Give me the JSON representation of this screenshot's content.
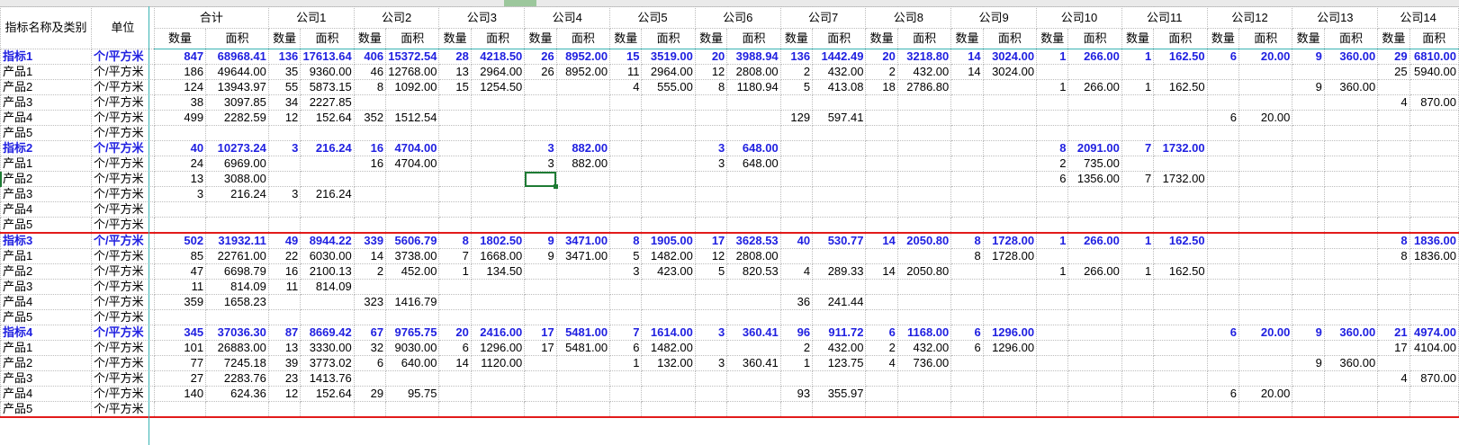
{
  "header": {
    "corner_label": "指标名称及类别",
    "unit_label": "单位",
    "groups": [
      "合计",
      "公司1",
      "公司2",
      "公司3",
      "公司4",
      "公司5",
      "公司6",
      "公司7",
      "公司8",
      "公司9",
      "公司10",
      "公司11",
      "公司12",
      "公司13",
      "公司14"
    ],
    "qty_label": "数量",
    "area_label": "面积"
  },
  "selection": {
    "row": 8,
    "col": "公司4 数量"
  },
  "rows": [
    {
      "kind": "sum",
      "name": "指标1",
      "unit": "个/平方米",
      "cells": [
        "847",
        "68968.41",
        "136",
        "17613.64",
        "406",
        "15372.54",
        "28",
        "4218.50",
        "26",
        "8952.00",
        "15",
        "3519.00",
        "20",
        "3988.94",
        "136",
        "1442.49",
        "20",
        "3218.80",
        "14",
        "3024.00",
        "1",
        "266.00",
        "1",
        "162.50",
        "6",
        "20.00",
        "9",
        "360.00",
        "29",
        "6810.00"
      ]
    },
    {
      "kind": "item",
      "name": "产品1",
      "unit": "个/平方米",
      "cells": [
        "186",
        "49644.00",
        "35",
        "9360.00",
        "46",
        "12768.00",
        "13",
        "2964.00",
        "26",
        "8952.00",
        "11",
        "2964.00",
        "12",
        "2808.00",
        "2",
        "432.00",
        "2",
        "432.00",
        "14",
        "3024.00",
        "",
        "",
        "",
        "",
        "",
        "",
        "",
        "",
        "25",
        "5940.00"
      ]
    },
    {
      "kind": "item",
      "name": "产品2",
      "unit": "个/平方米",
      "cells": [
        "124",
        "13943.97",
        "55",
        "5873.15",
        "8",
        "1092.00",
        "15",
        "1254.50",
        "",
        "",
        "4",
        "555.00",
        "8",
        "1180.94",
        "5",
        "413.08",
        "18",
        "2786.80",
        "",
        "",
        "1",
        "266.00",
        "1",
        "162.50",
        "",
        "",
        "9",
        "360.00",
        "",
        ""
      ]
    },
    {
      "kind": "item",
      "name": "产品3",
      "unit": "个/平方米",
      "cells": [
        "38",
        "3097.85",
        "34",
        "2227.85",
        "",
        "",
        "",
        "",
        "",
        "",
        "",
        "",
        "",
        "",
        "",
        "",
        "",
        "",
        "",
        "",
        "",
        "",
        "",
        "",
        "",
        "",
        "",
        "",
        "4",
        "870.00"
      ]
    },
    {
      "kind": "item",
      "name": "产品4",
      "unit": "个/平方米",
      "cells": [
        "499",
        "2282.59",
        "12",
        "152.64",
        "352",
        "1512.54",
        "",
        "",
        "",
        "",
        "",
        "",
        "",
        "",
        "129",
        "597.41",
        "",
        "",
        "",
        "",
        "",
        "",
        "",
        "",
        "6",
        "20.00",
        "",
        "",
        "",
        ""
      ]
    },
    {
      "kind": "item",
      "name": "产品5",
      "unit": "个/平方米",
      "cells": [
        "",
        "",
        "",
        "",
        "",
        "",
        "",
        "",
        "",
        "",
        "",
        "",
        "",
        "",
        "",
        "",
        "",
        "",
        "",
        "",
        "",
        "",
        "",
        "",
        "",
        "",
        "",
        "",
        "",
        ""
      ]
    },
    {
      "kind": "sum",
      "name": "指标2",
      "unit": "个/平方米",
      "cells": [
        "40",
        "10273.24",
        "3",
        "216.24",
        "16",
        "4704.00",
        "",
        "",
        "3",
        "882.00",
        "",
        "",
        "3",
        "648.00",
        "",
        "",
        "",
        "",
        "",
        "",
        "8",
        "2091.00",
        "7",
        "1732.00",
        "",
        "",
        "",
        "",
        "",
        ""
      ]
    },
    {
      "kind": "item",
      "name": "产品1",
      "unit": "个/平方米",
      "cells": [
        "24",
        "6969.00",
        "",
        "",
        "16",
        "4704.00",
        "",
        "",
        "3",
        "882.00",
        "",
        "",
        "3",
        "648.00",
        "",
        "",
        "",
        "",
        "",
        "",
        "2",
        "735.00",
        "",
        "",
        "",
        "",
        "",
        "",
        "",
        ""
      ]
    },
    {
      "kind": "item",
      "name": "产品2",
      "unit": "个/平方米",
      "cells": [
        "13",
        "3088.00",
        "",
        "",
        "",
        "",
        "",
        "",
        "",
        "",
        "",
        "",
        "",
        "",
        "",
        "",
        "",
        "",
        "",
        "",
        "6",
        "1356.00",
        "7",
        "1732.00",
        "",
        "",
        "",
        "",
        "",
        ""
      ]
    },
    {
      "kind": "item",
      "name": "产品3",
      "unit": "个/平方米",
      "cells": [
        "3",
        "216.24",
        "3",
        "216.24",
        "",
        "",
        "",
        "",
        "",
        "",
        "",
        "",
        "",
        "",
        "",
        "",
        "",
        "",
        "",
        "",
        "",
        "",
        "",
        "",
        "",
        "",
        "",
        "",
        "",
        ""
      ]
    },
    {
      "kind": "item",
      "name": "产品4",
      "unit": "个/平方米",
      "cells": [
        "",
        "",
        "",
        "",
        "",
        "",
        "",
        "",
        "",
        "",
        "",
        "",
        "",
        "",
        "",
        "",
        "",
        "",
        "",
        "",
        "",
        "",
        "",
        "",
        "",
        "",
        "",
        "",
        "",
        ""
      ]
    },
    {
      "kind": "item",
      "name": "产品5",
      "unit": "个/平方米",
      "cells": [
        "",
        "",
        "",
        "",
        "",
        "",
        "",
        "",
        "",
        "",
        "",
        "",
        "",
        "",
        "",
        "",
        "",
        "",
        "",
        "",
        "",
        "",
        "",
        "",
        "",
        "",
        "",
        "",
        "",
        ""
      ],
      "redbot": true
    },
    {
      "kind": "sum",
      "name": "指标3",
      "unit": "个/平方米",
      "cells": [
        "502",
        "31932.11",
        "49",
        "8944.22",
        "339",
        "5606.79",
        "8",
        "1802.50",
        "9",
        "3471.00",
        "8",
        "1905.00",
        "17",
        "3628.53",
        "40",
        "530.77",
        "14",
        "2050.80",
        "8",
        "1728.00",
        "1",
        "266.00",
        "1",
        "162.50",
        "",
        "",
        "",
        "",
        "8",
        "1836.00"
      ]
    },
    {
      "kind": "item",
      "name": "产品1",
      "unit": "个/平方米",
      "cells": [
        "85",
        "22761.00",
        "22",
        "6030.00",
        "14",
        "3738.00",
        "7",
        "1668.00",
        "9",
        "3471.00",
        "5",
        "1482.00",
        "12",
        "2808.00",
        "",
        "",
        "",
        "",
        "8",
        "1728.00",
        "",
        "",
        "",
        "",
        "",
        "",
        "",
        "",
        "8",
        "1836.00"
      ]
    },
    {
      "kind": "item",
      "name": "产品2",
      "unit": "个/平方米",
      "cells": [
        "47",
        "6698.79",
        "16",
        "2100.13",
        "2",
        "452.00",
        "1",
        "134.50",
        "",
        "",
        "3",
        "423.00",
        "5",
        "820.53",
        "4",
        "289.33",
        "14",
        "2050.80",
        "",
        "",
        "1",
        "266.00",
        "1",
        "162.50",
        "",
        "",
        "",
        "",
        "",
        ""
      ]
    },
    {
      "kind": "item",
      "name": "产品3",
      "unit": "个/平方米",
      "cells": [
        "11",
        "814.09",
        "11",
        "814.09",
        "",
        "",
        "",
        "",
        "",
        "",
        "",
        "",
        "",
        "",
        "",
        "",
        "",
        "",
        "",
        "",
        "",
        "",
        "",
        "",
        "",
        "",
        "",
        "",
        "",
        ""
      ]
    },
    {
      "kind": "item",
      "name": "产品4",
      "unit": "个/平方米",
      "cells": [
        "359",
        "1658.23",
        "",
        "",
        "323",
        "1416.79",
        "",
        "",
        "",
        "",
        "",
        "",
        "",
        "",
        "36",
        "241.44",
        "",
        "",
        "",
        "",
        "",
        "",
        "",
        "",
        "",
        "",
        "",
        "",
        "",
        ""
      ]
    },
    {
      "kind": "item",
      "name": "产品5",
      "unit": "个/平方米",
      "cells": [
        "",
        "",
        "",
        "",
        "",
        "",
        "",
        "",
        "",
        "",
        "",
        "",
        "",
        "",
        "",
        "",
        "",
        "",
        "",
        "",
        "",
        "",
        "",
        "",
        "",
        "",
        "",
        "",
        "",
        ""
      ]
    },
    {
      "kind": "sum",
      "name": "指标4",
      "unit": "个/平方米",
      "cells": [
        "345",
        "37036.30",
        "87",
        "8669.42",
        "67",
        "9765.75",
        "20",
        "2416.00",
        "17",
        "5481.00",
        "7",
        "1614.00",
        "3",
        "360.41",
        "96",
        "911.72",
        "6",
        "1168.00",
        "6",
        "1296.00",
        "",
        "",
        "",
        "",
        "6",
        "20.00",
        "9",
        "360.00",
        "21",
        "4974.00"
      ]
    },
    {
      "kind": "item",
      "name": "产品1",
      "unit": "个/平方米",
      "cells": [
        "101",
        "26883.00",
        "13",
        "3330.00",
        "32",
        "9030.00",
        "6",
        "1296.00",
        "17",
        "5481.00",
        "6",
        "1482.00",
        "",
        "",
        "2",
        "432.00",
        "2",
        "432.00",
        "6",
        "1296.00",
        "",
        "",
        "",
        "",
        "",
        "",
        "",
        "",
        "17",
        "4104.00"
      ]
    },
    {
      "kind": "item",
      "name": "产品2",
      "unit": "个/平方米",
      "cells": [
        "77",
        "7245.18",
        "39",
        "3773.02",
        "6",
        "640.00",
        "14",
        "1120.00",
        "",
        "",
        "1",
        "132.00",
        "3",
        "360.41",
        "1",
        "123.75",
        "4",
        "736.00",
        "",
        "",
        "",
        "",
        "",
        "",
        "",
        "",
        "9",
        "360.00",
        "",
        ""
      ]
    },
    {
      "kind": "item",
      "name": "产品3",
      "unit": "个/平方米",
      "cells": [
        "27",
        "2283.76",
        "23",
        "1413.76",
        "",
        "",
        "",
        "",
        "",
        "",
        "",
        "",
        "",
        "",
        "",
        "",
        "",
        "",
        "",
        "",
        "",
        "",
        "",
        "",
        "",
        "",
        "",
        "",
        "4",
        "870.00"
      ]
    },
    {
      "kind": "item",
      "name": "产品4",
      "unit": "个/平方米",
      "cells": [
        "140",
        "624.36",
        "12",
        "152.64",
        "29",
        "95.75",
        "",
        "",
        "",
        "",
        "",
        "",
        "",
        "",
        "93",
        "355.97",
        "",
        "",
        "",
        "",
        "",
        "",
        "",
        "",
        "6",
        "20.00",
        "",
        "",
        "",
        ""
      ]
    },
    {
      "kind": "item",
      "name": "产品5",
      "unit": "个/平方米",
      "cells": [
        "",
        "",
        "",
        "",
        "",
        "",
        "",
        "",
        "",
        "",
        "",
        "",
        "",
        "",
        "",
        "",
        "",
        "",
        "",
        "",
        "",
        "",
        "",
        "",
        "",
        "",
        "",
        "",
        "",
        ""
      ],
      "redbot": true
    }
  ],
  "colors": {
    "sum_text": "#1f1fe0",
    "selection": "#1e7b34",
    "divider": "#e21b1b",
    "header_line": "#39b3b3"
  }
}
